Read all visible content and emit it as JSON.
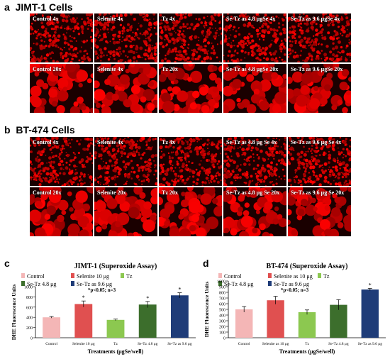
{
  "panel_a": {
    "letter": "a",
    "title": "JIMT-1 Cells",
    "rows": [
      [
        "Control 4x",
        "Selenite 4x",
        "Tz 4x",
        "Se-Tz  as 4.8 μgSe 4x",
        "Se-Tz  as 9.6 μgSe 4x"
      ],
      [
        "Control 20x",
        "Selenite 4x",
        "Tz 20x",
        "Se-Tz  as 4.8 μgSe 20x",
        "Se-Tz  as 9.6 μgSe 20x"
      ]
    ]
  },
  "panel_b": {
    "letter": "b",
    "title": "BT-474 Cells",
    "rows": [
      [
        "Control 4x",
        "Selenite 4x",
        "Tz 4x",
        "Se-Tz  as 4.8 μg Se 4x",
        "Se-Tz  as 9.6 μg Se 4x"
      ],
      [
        "Control 20x",
        "Selenite 20x",
        "Tz 20x",
        "Se-Tz  as 4.8 μg Se 20x",
        "Se-Tz  as 9.6 μg Se 20x"
      ]
    ]
  },
  "colors": {
    "micro_bg": "#1a0000",
    "micro_red": "#e00000",
    "bar_control": "#f4b6b6",
    "bar_selenite": "#e05050",
    "bar_tz": "#8cc850",
    "bar_setz48": "#3c6e2c",
    "bar_setz96": "#1f3c78"
  },
  "chart_data": [
    {
      "type": "bar",
      "letter": "c",
      "title": "JIMT-1 (Superoxide Assay)",
      "ylabel": "DHE Fluorescence Units",
      "xlabel": "Treatments (μgSe/well)",
      "ylim": [
        0,
        1000
      ],
      "yticks": [
        0,
        200,
        400,
        600,
        800,
        1000
      ],
      "categories": [
        "Control",
        "Selenite 10 μg",
        "Tz",
        "Se-Tz 4.8 μg",
        "Se-Tz as 9.6 μg"
      ],
      "values": [
        400,
        660,
        350,
        650,
        830
      ],
      "errors": [
        15,
        60,
        15,
        60,
        50
      ],
      "significant": [
        false,
        true,
        false,
        true,
        true
      ],
      "legend": [
        "Control",
        "Selenite 10 μg",
        "Tz",
        "Se-Tz 4.8 μg",
        "Se-Tz as 9.6 μg"
      ],
      "note": "*p<0.05; n=3",
      "star": "*"
    },
    {
      "type": "bar",
      "letter": "d",
      "title": "BT-474 (Superoxide Assay)",
      "ylabel": "DHE Fluorescence Units",
      "xlabel": "Treatments (μgSe/well)",
      "ylim": [
        0,
        1000
      ],
      "yticks": [
        0,
        100,
        200,
        300,
        400,
        500,
        600,
        700,
        800,
        900,
        1000
      ],
      "categories": [
        "Control",
        "Selenite as 10 μg",
        "Tz",
        "Se-Tz 4.8 μg",
        "Se-Tz as 9.6 μg"
      ],
      "values": [
        500,
        660,
        450,
        580,
        850
      ],
      "errors": [
        50,
        70,
        40,
        90,
        20
      ],
      "significant": [
        false,
        false,
        false,
        false,
        true
      ],
      "legend": [
        "Control",
        "Selenite as 10 μg",
        "Tz",
        "Se-Tz 4.8 μg",
        "Se-Tz as 9.6 μg"
      ],
      "note": "*p<0.05; n=3",
      "star": "*"
    }
  ]
}
